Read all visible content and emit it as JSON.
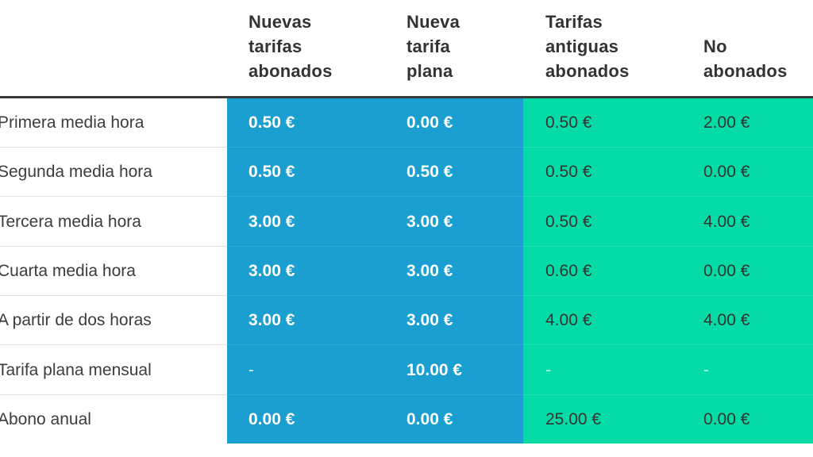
{
  "table": {
    "headers": [
      "Nuevas\ntarifas\nabonados",
      "Nueva\ntarifa\nplana",
      "Tarifas\nantiguas\nabonados",
      "No\nabonados"
    ],
    "rows": [
      {
        "label": "Primera media hora",
        "values": [
          "0.50 €",
          "0.00 €",
          "0.50 €",
          "2.00 €"
        ]
      },
      {
        "label": "Segunda media hora",
        "values": [
          "0.50 €",
          "0.50 €",
          "0.50 €",
          "0.00 €"
        ]
      },
      {
        "label": "Tercera media hora",
        "values": [
          "3.00 €",
          "3.00 €",
          "0.50 €",
          "4.00 €"
        ]
      },
      {
        "label": "Cuarta media hora",
        "values": [
          "3.00 €",
          "3.00 €",
          "0.60 €",
          "0.00 €"
        ]
      },
      {
        "label": "A partir de dos horas",
        "values": [
          "3.00 €",
          "3.00 €",
          "4.00 €",
          "4.00 €"
        ]
      },
      {
        "label": "Tarifa plana mensual",
        "values": [
          "-",
          "10.00 €",
          "-",
          "-"
        ]
      },
      {
        "label": "Abono anual",
        "values": [
          "0.00 €",
          "0.00 €",
          "25.00 €",
          "0.00 €"
        ]
      }
    ]
  },
  "colors": {
    "new_tariffs_column": "#1a9fd0",
    "old_tariffs_column": "#04dba6",
    "header_rule": "#3a3a3a"
  }
}
